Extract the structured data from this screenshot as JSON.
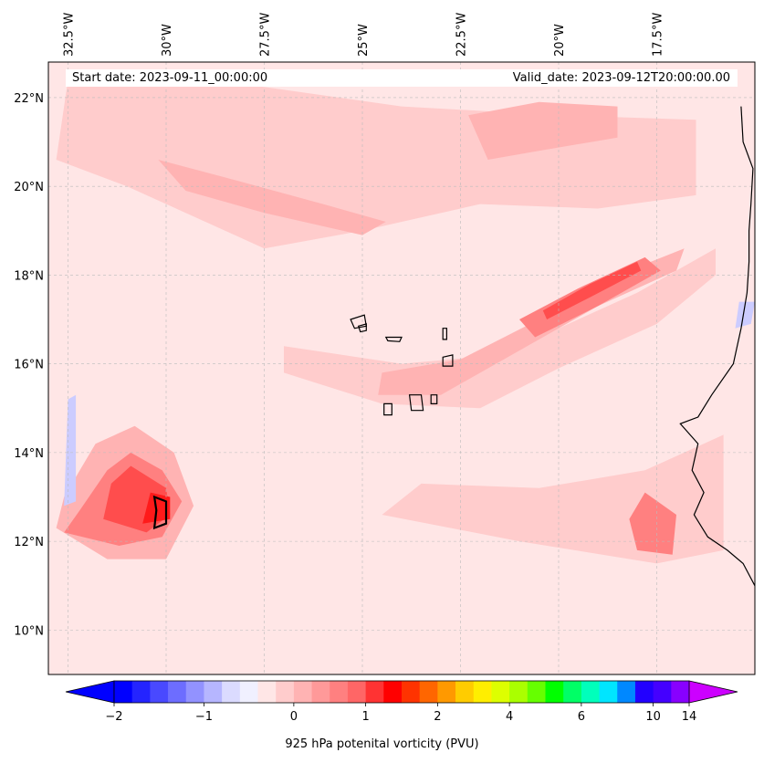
{
  "map": {
    "extent": {
      "lon_min": -33.0,
      "lon_max": -15.0,
      "lat_min": 9.0,
      "lat_max": 22.8
    },
    "start_date_text": "Start date: 2023-09-11_00:00:00",
    "valid_date_text": "Valid_date: 2023-09-12T20:00:00.00",
    "lon_ticks": [
      {
        "lon": -32.5,
        "label": "32.5°W"
      },
      {
        "lon": -30.0,
        "label": "30°W"
      },
      {
        "lon": -27.5,
        "label": "27.5°W"
      },
      {
        "lon": -25.0,
        "label": "25°W"
      },
      {
        "lon": -22.5,
        "label": "22.5°W"
      },
      {
        "lon": -20.0,
        "label": "20°W"
      },
      {
        "lon": -17.5,
        "label": "17.5°W"
      }
    ],
    "lat_ticks": [
      {
        "lat": 22,
        "label": "22°N"
      },
      {
        "lat": 20,
        "label": "20°N"
      },
      {
        "lat": 18,
        "label": "18°N"
      },
      {
        "lat": 16,
        "label": "16°N"
      },
      {
        "lat": 14,
        "label": "14°N"
      },
      {
        "lat": 12,
        "label": "12°N"
      },
      {
        "lat": 10,
        "label": "10°N"
      }
    ],
    "background_fill": "#ffe6e6",
    "pv_features": [
      {
        "name": "northern-band",
        "color": "#ffcccc",
        "points": [
          [
            -32.5,
            22.4
          ],
          [
            -28,
            22.3
          ],
          [
            -24,
            21.8
          ],
          [
            -20,
            21.6
          ],
          [
            -16.5,
            21.5
          ],
          [
            -16.5,
            19.8
          ],
          [
            -19,
            19.5
          ],
          [
            -22,
            19.6
          ],
          [
            -25,
            19.0
          ],
          [
            -27.5,
            18.6
          ],
          [
            -31,
            20.0
          ],
          [
            -32.8,
            20.6
          ]
        ]
      },
      {
        "name": "northern-streak",
        "color": "#ffb3b3",
        "points": [
          [
            -30.2,
            20.6
          ],
          [
            -28.5,
            20.2
          ],
          [
            -26,
            19.6
          ],
          [
            -24.4,
            19.2
          ],
          [
            -25,
            18.9
          ],
          [
            -27.5,
            19.4
          ],
          [
            -29.5,
            19.9
          ]
        ]
      },
      {
        "name": "northeast-patch",
        "color": "#ffb3b3",
        "points": [
          [
            -22.3,
            21.6
          ],
          [
            -20.5,
            21.9
          ],
          [
            -18.5,
            21.8
          ],
          [
            -18.5,
            21.1
          ],
          [
            -20.5,
            20.8
          ],
          [
            -21.8,
            20.6
          ]
        ]
      },
      {
        "name": "cape-verde-band",
        "color": "#ffcccc",
        "points": [
          [
            -27,
            16.4
          ],
          [
            -24,
            16.0
          ],
          [
            -21.5,
            16.2
          ],
          [
            -18,
            17.6
          ],
          [
            -16,
            18.6
          ],
          [
            -16,
            18.0
          ],
          [
            -17.5,
            16.9
          ],
          [
            -20,
            15.9
          ],
          [
            -22,
            15.0
          ],
          [
            -24.5,
            15.1
          ],
          [
            -27,
            15.8
          ]
        ]
      },
      {
        "name": "cape-verde-jet-outer",
        "color": "#ffb3b3",
        "points": [
          [
            -24.5,
            15.8
          ],
          [
            -22.5,
            16.1
          ],
          [
            -20.5,
            17.0
          ],
          [
            -18.5,
            18.0
          ],
          [
            -16.8,
            18.6
          ],
          [
            -17,
            18.1
          ],
          [
            -19,
            17.3
          ],
          [
            -21,
            16.3
          ],
          [
            -23,
            15.3
          ],
          [
            -24.6,
            15.3
          ]
        ]
      },
      {
        "name": "cape-verde-jet-core",
        "color": "#ff8080",
        "points": [
          [
            -21,
            17.0
          ],
          [
            -19.5,
            17.7
          ],
          [
            -17.8,
            18.4
          ],
          [
            -17.4,
            18.1
          ],
          [
            -19,
            17.3
          ],
          [
            -20.6,
            16.6
          ]
        ]
      },
      {
        "name": "cape-verde-jet-max",
        "color": "#ff4d4d",
        "points": [
          [
            -20.4,
            17.2
          ],
          [
            -19.2,
            17.8
          ],
          [
            -18.0,
            18.3
          ],
          [
            -17.9,
            18.1
          ],
          [
            -19.2,
            17.5
          ],
          [
            -20.3,
            17.0
          ]
        ]
      },
      {
        "name": "storm-outer",
        "color": "#ffb3b3",
        "points": [
          [
            -32.8,
            12.3
          ],
          [
            -31.5,
            11.6
          ],
          [
            -30,
            11.6
          ],
          [
            -29.3,
            12.8
          ],
          [
            -29.8,
            14.0
          ],
          [
            -30.8,
            14.6
          ],
          [
            -31.8,
            14.2
          ],
          [
            -32.6,
            13.0
          ]
        ]
      },
      {
        "name": "storm-mid",
        "color": "#ff8080",
        "points": [
          [
            -32.6,
            12.2
          ],
          [
            -31.2,
            11.9
          ],
          [
            -30.1,
            12.1
          ],
          [
            -29.6,
            12.9
          ],
          [
            -30.1,
            13.6
          ],
          [
            -30.9,
            14.0
          ],
          [
            -31.5,
            13.6
          ],
          [
            -32.2,
            12.7
          ]
        ]
      },
      {
        "name": "storm-core",
        "color": "#ff4d4d",
        "points": [
          [
            -31.6,
            12.5
          ],
          [
            -30.5,
            12.2
          ],
          [
            -29.9,
            12.6
          ],
          [
            -30.0,
            13.2
          ],
          [
            -30.9,
            13.7
          ],
          [
            -31.4,
            13.3
          ]
        ]
      },
      {
        "name": "storm-max",
        "color": "#ff1a1a",
        "points": [
          [
            -30.6,
            12.4
          ],
          [
            -29.9,
            12.5
          ],
          [
            -29.9,
            13.0
          ],
          [
            -30.4,
            13.1
          ]
        ]
      },
      {
        "name": "southeast-band",
        "color": "#ffcccc",
        "points": [
          [
            -24.5,
            12.6
          ],
          [
            -21,
            12.0
          ],
          [
            -17.5,
            11.5
          ],
          [
            -15.8,
            11.8
          ],
          [
            -15.8,
            14.4
          ],
          [
            -17.8,
            13.6
          ],
          [
            -20.5,
            13.2
          ],
          [
            -23.5,
            13.3
          ]
        ]
      },
      {
        "name": "southeast-core",
        "color": "#ff8080",
        "points": [
          [
            -18.0,
            11.8
          ],
          [
            -17.1,
            11.7
          ],
          [
            -17.0,
            12.6
          ],
          [
            -17.8,
            13.1
          ],
          [
            -18.2,
            12.5
          ]
        ]
      },
      {
        "name": "west-blue-streak",
        "color": "#ccccff",
        "points": [
          [
            -32.6,
            12.8
          ],
          [
            -32.3,
            12.9
          ],
          [
            -32.3,
            15.3
          ],
          [
            -32.5,
            15.2
          ]
        ]
      },
      {
        "name": "coast-blue-patch",
        "color": "#ccccff",
        "points": [
          [
            -15.5,
            16.8
          ],
          [
            -15.1,
            16.9
          ],
          [
            -15.0,
            17.4
          ],
          [
            -15.4,
            17.4
          ]
        ]
      }
    ],
    "coastline_color": "#000000",
    "coast_points": [
      [
        -15.35,
        21.8
      ],
      [
        -15.3,
        21.0
      ],
      [
        -15.05,
        20.4
      ],
      [
        -15.1,
        19.6
      ],
      [
        -15.15,
        19.0
      ],
      [
        -15.15,
        18.3
      ],
      [
        -15.2,
        17.6
      ],
      [
        -15.35,
        16.8
      ],
      [
        -15.55,
        16.0
      ],
      [
        -16.1,
        15.3
      ],
      [
        -16.45,
        14.8
      ],
      [
        -16.9,
        14.65
      ],
      [
        -16.45,
        14.2
      ],
      [
        -16.6,
        13.6
      ],
      [
        -16.3,
        13.1
      ],
      [
        -16.55,
        12.6
      ],
      [
        -16.2,
        12.1
      ],
      [
        -15.7,
        11.8
      ],
      [
        -15.3,
        11.5
      ],
      [
        -15.0,
        11.0
      ]
    ],
    "islands": [
      {
        "name": "santo-antao",
        "points": [
          [
            -25.3,
            17.0
          ],
          [
            -24.95,
            17.1
          ],
          [
            -24.9,
            16.85
          ],
          [
            -25.2,
            16.8
          ]
        ]
      },
      {
        "name": "sao-vicente",
        "points": [
          [
            -25.1,
            16.85
          ],
          [
            -24.9,
            16.9
          ],
          [
            -24.9,
            16.75
          ],
          [
            -25.05,
            16.72
          ]
        ]
      },
      {
        "name": "sao-nicolau",
        "points": [
          [
            -24.4,
            16.6
          ],
          [
            -24.0,
            16.6
          ],
          [
            -24.05,
            16.5
          ],
          [
            -24.35,
            16.52
          ]
        ]
      },
      {
        "name": "sal",
        "points": [
          [
            -22.95,
            16.8
          ],
          [
            -22.85,
            16.8
          ],
          [
            -22.85,
            16.55
          ],
          [
            -22.95,
            16.55
          ]
        ]
      },
      {
        "name": "boa-vista",
        "points": [
          [
            -22.95,
            16.15
          ],
          [
            -22.7,
            16.2
          ],
          [
            -22.7,
            15.95
          ],
          [
            -22.95,
            15.95
          ]
        ]
      },
      {
        "name": "santiago",
        "points": [
          [
            -23.8,
            15.3
          ],
          [
            -23.5,
            15.3
          ],
          [
            -23.45,
            14.95
          ],
          [
            -23.75,
            14.95
          ]
        ]
      },
      {
        "name": "maio",
        "points": [
          [
            -23.25,
            15.3
          ],
          [
            -23.1,
            15.3
          ],
          [
            -23.1,
            15.1
          ],
          [
            -23.25,
            15.1
          ]
        ]
      },
      {
        "name": "fogo",
        "points": [
          [
            -24.45,
            15.1
          ],
          [
            -24.25,
            15.1
          ],
          [
            -24.25,
            14.85
          ],
          [
            -24.45,
            14.85
          ]
        ]
      }
    ],
    "storm_contour": {
      "name": "1pvu-contour",
      "points": [
        [
          -30.3,
          12.3
        ],
        [
          -30.0,
          12.4
        ],
        [
          -30.0,
          12.9
        ],
        [
          -30.3,
          13.0
        ],
        [
          -30.25,
          12.7
        ]
      ]
    }
  },
  "colorbar": {
    "title": "925 hPa potenital vorticity (PVU)",
    "colors": [
      "#0000ff",
      "#2424ff",
      "#4949ff",
      "#6d6dff",
      "#9292ff",
      "#b6b6ff",
      "#dbdbff",
      "#f0f0ff",
      "#ffe6e6",
      "#ffcccc",
      "#ffb3b3",
      "#ff9999",
      "#ff8080",
      "#ff6666",
      "#ff3333",
      "#ff0000",
      "#ff3300",
      "#ff6600",
      "#ff9900",
      "#ffcc00",
      "#ffee00",
      "#ddff00",
      "#aaff00",
      "#66ff00",
      "#00ff00",
      "#00ff66",
      "#00ffbb",
      "#00e5ff",
      "#0088ff",
      "#2200ff",
      "#4400ff",
      "#8800ff"
    ],
    "under_color": "#0000ff",
    "over_color": "#cc00ff",
    "ticks": [
      {
        "index": 0,
        "label": "−2"
      },
      {
        "index": 5,
        "label": "−1"
      },
      {
        "index": 10,
        "label": "0"
      },
      {
        "index": 14,
        "label": "1"
      },
      {
        "index": 18,
        "label": "2"
      },
      {
        "index": 22,
        "label": "4"
      },
      {
        "index": 26,
        "label": "6"
      },
      {
        "index": 30,
        "label": "10"
      },
      {
        "index": 34,
        "label": "14"
      }
    ]
  }
}
